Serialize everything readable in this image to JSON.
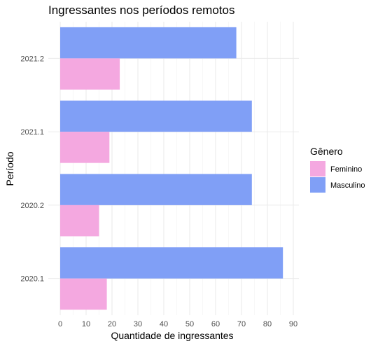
{
  "chart_data": {
    "type": "bar",
    "orientation": "horizontal",
    "title": "Ingressantes nos períodos remotos",
    "xlabel": "Quantidade de ingressantes",
    "ylabel": "Período",
    "categories": [
      "2020.1",
      "2020.2",
      "2021.1",
      "2021.2"
    ],
    "series": [
      {
        "name": "Feminino",
        "values": [
          18,
          15,
          19,
          23
        ],
        "color": "#F4A8E0"
      },
      {
        "name": "Masculino",
        "values": [
          86,
          74,
          74,
          68
        ],
        "color": "#809FF6"
      }
    ],
    "xlim": [
      0,
      90
    ],
    "x_ticks": [
      0,
      10,
      20,
      30,
      40,
      50,
      60,
      70,
      80,
      90
    ],
    "grid": true,
    "legend": {
      "title": "Gênero",
      "placement": "right"
    }
  }
}
